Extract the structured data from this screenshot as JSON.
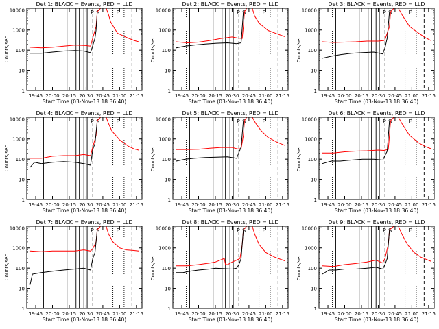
{
  "chart_data": [
    {
      "type": "line",
      "title": "Det 1: BLACK = Events, RED = LLD",
      "flags": [
        "",
        "P",
        "S",
        "E"
      ],
      "black_start": 1,
      "gap": false
    },
    {
      "type": "line",
      "title": "Det 2: BLACK = Events, RED = LLD",
      "flags": [
        "",
        "P",
        "S",
        "E"
      ],
      "black_start": 1,
      "gap": false
    },
    {
      "type": "line",
      "title": "Det 3: BLACK = Events, RED = LLD",
      "flags": [
        "",
        "P",
        "S",
        "E"
      ],
      "black_start": 1,
      "gap": false
    },
    {
      "type": "line",
      "title": "Det 4: BLACK = Events, RED = LLD",
      "flags": [
        "",
        "P",
        "S",
        "E"
      ],
      "black_start": 1,
      "gap": false
    },
    {
      "type": "line",
      "title": "Det 5: BLACK = Events, RED = LLD",
      "flags": [
        "",
        "P",
        "S",
        "E"
      ],
      "black_start": 1,
      "gap": false
    },
    {
      "type": "line",
      "title": "Det 6: BLACK = Events, RED = LLD",
      "flags": [
        "",
        "P",
        "S",
        "E"
      ],
      "black_start": 1,
      "gap": false
    },
    {
      "type": "line",
      "title": "Det 7: BLACK = Events, RED = LLD",
      "flags": [
        "",
        "P",
        "S",
        "E"
      ],
      "black_start": 1,
      "gap": false
    },
    {
      "type": "line",
      "title": "Det 8: BLACK = Events, RED = LLD",
      "flags": [
        "",
        "P",
        "S",
        "E"
      ],
      "black_start": 1,
      "gap": true
    },
    {
      "type": "line",
      "title": "Det 9: BLACK = Events, RED = LLD",
      "flags": [
        "",
        "P",
        "S",
        "E"
      ],
      "black_start": 1,
      "gap": false
    }
  ],
  "axes": {
    "xlabel": "Start Time (03-Nov-13 18:36:40)",
    "ylabel": "Counts/sec",
    "xticks": [
      "19:45",
      "20:00",
      "20:15",
      "20:30",
      "20:45",
      "21:00",
      "21:15"
    ],
    "xtick_values": [
      45,
      60,
      75,
      90,
      105,
      120,
      135
    ],
    "xlim": [
      37,
      140
    ],
    "yticks": [
      "1",
      "10",
      "100",
      "1000",
      "10000"
    ],
    "ylim": [
      1,
      12000
    ],
    "yscale": "log",
    "solid_vlines": [
      52,
      73,
      81,
      84,
      88,
      91
    ],
    "dotted_vlines": [
      49,
      114,
      124
    ],
    "dashed_vlines": [
      96,
      131
    ]
  },
  "colors": {
    "events": "#000000",
    "lld": "#ff0000",
    "axes": "#000000"
  },
  "panels": [
    {
      "red": [
        [
          40,
          140
        ],
        [
          50,
          130
        ],
        [
          60,
          140
        ],
        [
          70,
          160
        ],
        [
          80,
          180
        ],
        [
          90,
          170
        ],
        [
          94,
          160
        ],
        [
          96,
          400
        ],
        [
          99,
          1500
        ],
        [
          100,
          8000
        ],
        [
          103,
          12000
        ],
        [
          108,
          12000
        ],
        [
          110,
          6000
        ],
        [
          112,
          2500
        ],
        [
          118,
          700
        ],
        [
          126,
          430
        ],
        [
          133,
          300
        ],
        [
          137,
          260
        ]
      ],
      "black": [
        [
          40,
          70
        ],
        [
          46,
          70
        ],
        [
          50,
          70
        ],
        [
          60,
          80
        ],
        [
          70,
          90
        ],
        [
          80,
          95
        ],
        [
          88,
          90
        ],
        [
          94,
          75
        ],
        [
          96,
          170
        ],
        [
          98,
          400
        ],
        [
          99,
          1000
        ],
        [
          100,
          8000
        ]
      ]
    },
    {
      "red": [
        [
          40,
          260
        ],
        [
          50,
          230
        ],
        [
          60,
          250
        ],
        [
          70,
          300
        ],
        [
          80,
          380
        ],
        [
          90,
          450
        ],
        [
          95,
          400
        ],
        [
          99,
          380
        ],
        [
          100,
          1500
        ],
        [
          101,
          8000
        ],
        [
          103,
          12000
        ],
        [
          108,
          12000
        ],
        [
          110,
          5000
        ],
        [
          114,
          2200
        ],
        [
          122,
          950
        ],
        [
          130,
          650
        ],
        [
          137,
          470
        ]
      ],
      "black": [
        [
          40,
          130
        ],
        [
          48,
          160
        ],
        [
          56,
          180
        ],
        [
          66,
          200
        ],
        [
          76,
          220
        ],
        [
          86,
          230
        ],
        [
          94,
          210
        ],
        [
          98,
          230
        ],
        [
          100,
          8000
        ]
      ]
    },
    {
      "red": [
        [
          40,
          260
        ],
        [
          50,
          240
        ],
        [
          60,
          250
        ],
        [
          70,
          260
        ],
        [
          80,
          280
        ],
        [
          90,
          280
        ],
        [
          95,
          300
        ],
        [
          96,
          330
        ],
        [
          100,
          1500
        ],
        [
          101,
          8000
        ],
        [
          104,
          12000
        ],
        [
          108,
          12000
        ],
        [
          111,
          6000
        ],
        [
          118,
          1500
        ],
        [
          126,
          700
        ],
        [
          132,
          420
        ],
        [
          137,
          300
        ]
      ],
      "black": [
        [
          40,
          40
        ],
        [
          48,
          50
        ],
        [
          56,
          60
        ],
        [
          66,
          70
        ],
        [
          76,
          75
        ],
        [
          86,
          80
        ],
        [
          94,
          65
        ],
        [
          96,
          130
        ],
        [
          98,
          400
        ],
        [
          100,
          8000
        ]
      ]
    },
    {
      "red": [
        [
          40,
          110
        ],
        [
          50,
          110
        ],
        [
          60,
          140
        ],
        [
          70,
          150
        ],
        [
          80,
          150
        ],
        [
          88,
          170
        ],
        [
          94,
          150
        ],
        [
          96,
          400
        ],
        [
          99,
          1500
        ],
        [
          100,
          8000
        ],
        [
          103,
          12000
        ],
        [
          108,
          12000
        ],
        [
          110,
          6000
        ],
        [
          113,
          2500
        ],
        [
          120,
          900
        ],
        [
          128,
          430
        ],
        [
          133,
          320
        ],
        [
          137,
          280
        ]
      ],
      "black": [
        [
          40,
          40
        ],
        [
          44,
          70
        ],
        [
          50,
          60
        ],
        [
          60,
          70
        ],
        [
          70,
          75
        ],
        [
          80,
          70
        ],
        [
          88,
          60
        ],
        [
          94,
          50
        ],
        [
          96,
          300
        ],
        [
          98,
          600
        ],
        [
          100,
          8000
        ]
      ]
    },
    {
      "red": [
        [
          40,
          300
        ],
        [
          50,
          300
        ],
        [
          60,
          310
        ],
        [
          70,
          350
        ],
        [
          80,
          380
        ],
        [
          90,
          380
        ],
        [
          95,
          320
        ],
        [
          98,
          330
        ],
        [
          100,
          1500
        ],
        [
          101,
          8000
        ],
        [
          103,
          12000
        ],
        [
          108,
          12000
        ],
        [
          111,
          6000
        ],
        [
          116,
          2500
        ],
        [
          122,
          1200
        ],
        [
          130,
          700
        ],
        [
          137,
          480
        ]
      ],
      "black": [
        [
          40,
          80
        ],
        [
          48,
          100
        ],
        [
          56,
          110
        ],
        [
          66,
          120
        ],
        [
          76,
          125
        ],
        [
          86,
          130
        ],
        [
          94,
          110
        ],
        [
          98,
          400
        ],
        [
          100,
          8000
        ]
      ]
    },
    {
      "red": [
        [
          40,
          200
        ],
        [
          50,
          200
        ],
        [
          60,
          230
        ],
        [
          70,
          250
        ],
        [
          80,
          260
        ],
        [
          90,
          280
        ],
        [
          95,
          270
        ],
        [
          99,
          300
        ],
        [
          100,
          1500
        ],
        [
          101,
          8000
        ],
        [
          104,
          12000
        ],
        [
          108,
          12000
        ],
        [
          111,
          6000
        ],
        [
          118,
          1500
        ],
        [
          126,
          650
        ],
        [
          132,
          420
        ],
        [
          137,
          330
        ]
      ],
      "black": [
        [
          40,
          60
        ],
        [
          48,
          80
        ],
        [
          56,
          80
        ],
        [
          66,
          90
        ],
        [
          76,
          100
        ],
        [
          86,
          100
        ],
        [
          94,
          90
        ],
        [
          98,
          250
        ],
        [
          100,
          8000
        ]
      ]
    },
    {
      "red": [
        [
          40,
          700
        ],
        [
          50,
          650
        ],
        [
          60,
          700
        ],
        [
          70,
          700
        ],
        [
          80,
          700
        ],
        [
          88,
          800
        ],
        [
          94,
          700
        ],
        [
          96,
          900
        ],
        [
          99,
          2000
        ],
        [
          100,
          8000
        ],
        [
          103,
          12000
        ],
        [
          108,
          12000
        ],
        [
          110,
          5000
        ],
        [
          114,
          2000
        ],
        [
          120,
          1000
        ],
        [
          126,
          800
        ],
        [
          132,
          750
        ],
        [
          137,
          700
        ]
      ],
      "black": [
        [
          40,
          15
        ],
        [
          42,
          50
        ],
        [
          50,
          60
        ],
        [
          60,
          70
        ],
        [
          70,
          80
        ],
        [
          80,
          90
        ],
        [
          88,
          100
        ],
        [
          94,
          80
        ],
        [
          96,
          300
        ],
        [
          98,
          600
        ],
        [
          100,
          8000
        ]
      ]
    },
    {
      "red": [
        [
          40,
          130
        ],
        [
          50,
          130
        ],
        [
          60,
          150
        ],
        [
          70,
          180
        ],
        [
          75,
          200
        ],
        [
          83,
          300
        ],
        [
          84,
          150
        ],
        [
          86,
          150
        ],
        [
          90,
          200
        ],
        [
          94,
          250
        ],
        [
          97,
          300
        ],
        [
          99,
          1500
        ],
        [
          100,
          8000
        ],
        [
          103,
          12000
        ],
        [
          108,
          12000
        ],
        [
          110,
          5000
        ],
        [
          114,
          1500
        ],
        [
          120,
          600
        ],
        [
          128,
          350
        ],
        [
          137,
          230
        ]
      ],
      "black": [
        [
          40,
          60
        ],
        [
          46,
          60
        ],
        [
          52,
          70
        ],
        [
          60,
          80
        ],
        [
          70,
          90
        ],
        [
          75,
          100
        ],
        [
          90,
          90
        ],
        [
          94,
          100
        ],
        [
          96,
          150
        ],
        [
          98,
          300
        ],
        [
          100,
          8000
        ]
      ]
    },
    {
      "red": [
        [
          40,
          130
        ],
        [
          50,
          120
        ],
        [
          60,
          150
        ],
        [
          70,
          170
        ],
        [
          80,
          200
        ],
        [
          88,
          250
        ],
        [
          94,
          180
        ],
        [
          96,
          300
        ],
        [
          99,
          1500
        ],
        [
          100,
          8000
        ],
        [
          104,
          12000
        ],
        [
          108,
          12000
        ],
        [
          111,
          5000
        ],
        [
          116,
          1500
        ],
        [
          122,
          600
        ],
        [
          128,
          350
        ],
        [
          137,
          220
        ]
      ],
      "black": [
        [
          40,
          50
        ],
        [
          46,
          80
        ],
        [
          52,
          80
        ],
        [
          60,
          90
        ],
        [
          70,
          90
        ],
        [
          80,
          100
        ],
        [
          88,
          110
        ],
        [
          94,
          90
        ],
        [
          96,
          150
        ],
        [
          98,
          300
        ],
        [
          100,
          8000
        ]
      ]
    }
  ]
}
